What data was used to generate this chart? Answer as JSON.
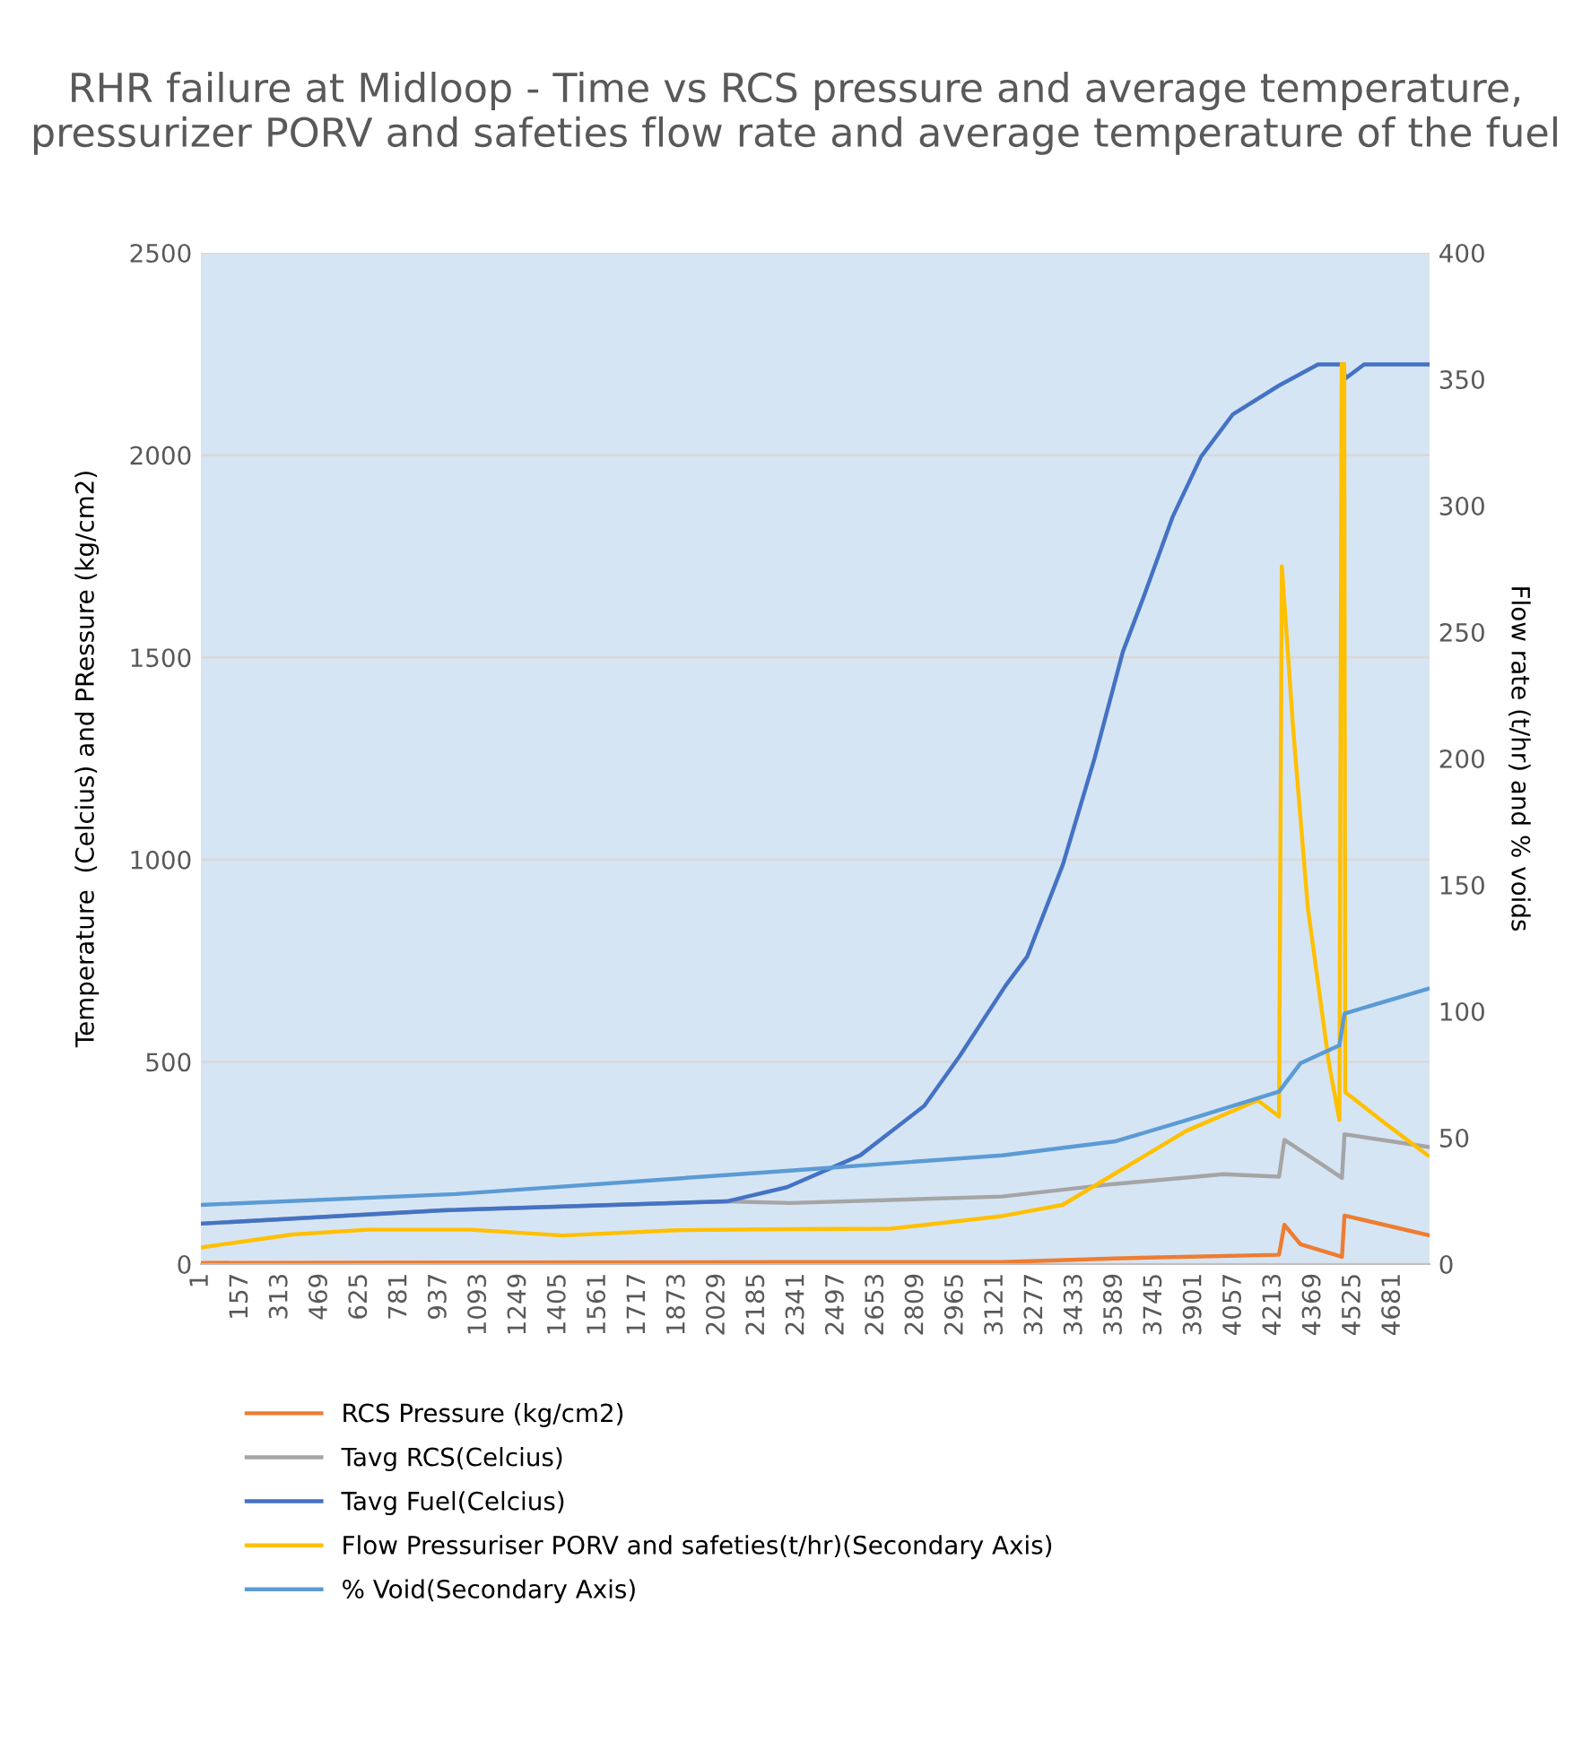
{
  "chart_data": {
    "type": "line",
    "title": "RHR failure at Midloop - Time vs RCS pressure and average temperature, pressurizer PORV and safeties flow rate and average temperature of the fuel",
    "ylabel": "Temperature  (Celcius) and PRessure (kg/cm2)",
    "y2label": "Flow rate (t/hr) and % voids",
    "xlim": [
      1,
      4825
    ],
    "xticks": [
      1,
      157,
      313,
      469,
      625,
      781,
      937,
      1093,
      1249,
      1405,
      1561,
      1717,
      1873,
      2029,
      2185,
      2341,
      2497,
      2653,
      2809,
      2965,
      3121,
      3277,
      3433,
      3589,
      3745,
      3901,
      4057,
      4213,
      4369,
      4525,
      4681
    ],
    "ylim": [
      0,
      2500
    ],
    "yticks": [
      0,
      500,
      1000,
      1500,
      2000,
      2500
    ],
    "y2lim": [
      0,
      400
    ],
    "y2ticks": [
      0,
      50,
      100,
      150,
      200,
      250,
      300,
      350,
      400
    ],
    "grid": "y",
    "legend": "bottom",
    "marker": "none",
    "line_style": "solid",
    "series": [
      {
        "name": "RCS Pressure (kg/cm2)",
        "color": "#ed7d31",
        "x": [
          1,
          1000,
          2311,
          3147,
          3586,
          4234,
          4255,
          4318,
          4481,
          4491,
          4818
        ],
        "values": [
          3,
          4,
          5,
          5,
          14,
          23,
          97,
          49,
          18,
          120,
          72
        ]
      },
      {
        "name": "Tavg RCS(Celcius)",
        "color": "#a5a5a5",
        "x": [
          1,
          952,
          2065,
          2311,
          3147,
          3586,
          4016,
          4234,
          4255,
          4413,
          4481,
          4491,
          4818
        ],
        "values": [
          100,
          133,
          155,
          151,
          167,
          198,
          222,
          216,
          307,
          242,
          213,
          321,
          290
        ]
      },
      {
        "name": "Tavg Fuel(Celcius)",
        "color": "#4472c4",
        "x": [
          1,
          952,
          2065,
          2302,
          2590,
          2841,
          2980,
          3161,
          3245,
          3385,
          3510,
          3621,
          3705,
          3816,
          3928,
          4053,
          4234,
          4387,
          4485,
          4494,
          4568,
          4825
        ],
        "values": [
          100,
          133,
          155,
          190,
          269,
          391,
          514,
          689,
          760,
          987,
          1251,
          1514,
          1654,
          1847,
          1996,
          2101,
          2172,
          2224,
          2224,
          2189,
          2224,
          2224
        ]
      },
      {
        "name": "Flow Pressuriser PORV and safeties(t/hr)(Secondary Axis)",
        "color": "#ffc000",
        "axis": "y2",
        "x": [
          1,
          360,
          656,
          1058,
          1421,
          1867,
          2311,
          2708,
          3147,
          3384,
          3593,
          3872,
          4150,
          4234,
          4245,
          4290,
          4347,
          4430,
          4471,
          4480,
          4490,
          4494,
          4652,
          4818
        ],
        "values": [
          6.6,
          11.7,
          13.6,
          13.6,
          11.3,
          13.4,
          13.8,
          14,
          19,
          23.4,
          36,
          52.8,
          64.8,
          58.4,
          276,
          211,
          141,
          79.4,
          57,
          356,
          356,
          68,
          55.6,
          43
        ]
      },
      {
        "name": "% Void(Secondary Axis)",
        "color": "#5b9bd5",
        "axis": "y2",
        "x": [
          1,
          1000,
          2302,
          3147,
          3593,
          3872,
          4234,
          4318,
          4471,
          4491,
          4818
        ],
        "values": [
          23.4,
          27.7,
          36.9,
          43,
          48.6,
          57,
          68.2,
          79.4,
          86.5,
          99.1,
          108.9
        ]
      }
    ]
  }
}
